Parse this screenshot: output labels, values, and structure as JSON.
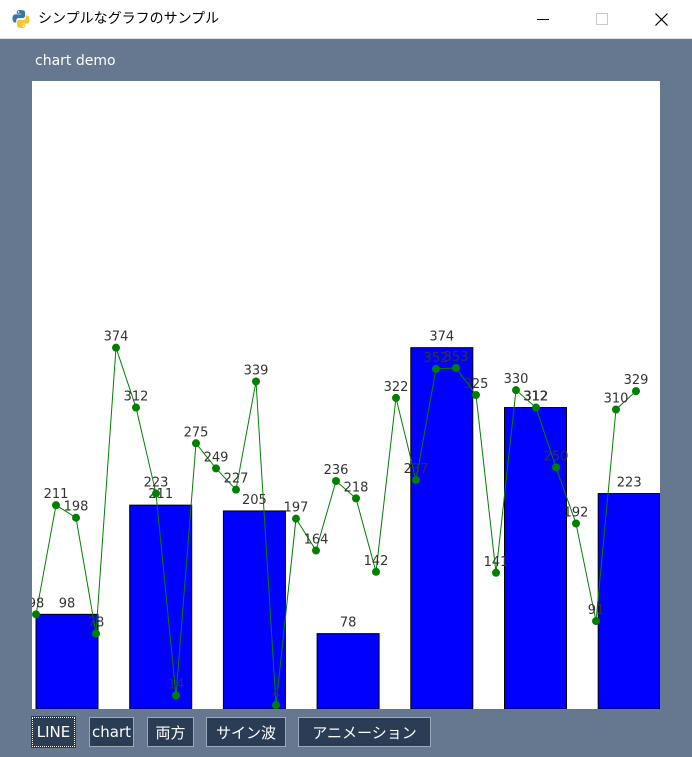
{
  "window": {
    "title": "シンプルなグラフのサンプル",
    "icon": "python-logo-icon",
    "controls": [
      "minimize-icon",
      "maximize-icon",
      "close-icon"
    ]
  },
  "canvas_label": "chart demo",
  "toolbar": {
    "buttons": [
      {
        "label": "LINE",
        "active": true
      },
      {
        "label": "chart",
        "active": false
      },
      {
        "label": "両方",
        "active": false
      },
      {
        "label": "サイン波",
        "active": false
      },
      {
        "label": "アニメーション",
        "active": false
      }
    ]
  },
  "colors": {
    "bar_fill": "#0000ff",
    "line": "#008000",
    "marker": "#008000",
    "background": "#66788f",
    "button_bg": "#2b3d55"
  },
  "chart_data": {
    "type": "bar+line",
    "ylim": [
      0,
      650
    ],
    "grid": false,
    "bars": {
      "values": [
        98,
        211,
        205,
        78,
        374,
        312,
        223
      ]
    },
    "line": {
      "values": [
        98,
        211,
        198,
        78,
        374,
        312,
        223,
        14,
        275,
        249,
        227,
        339,
        4,
        197,
        164,
        236,
        218,
        142,
        322,
        237,
        352,
        353,
        325,
        141,
        330,
        312,
        250,
        192,
        91,
        310,
        329
      ]
    }
  }
}
